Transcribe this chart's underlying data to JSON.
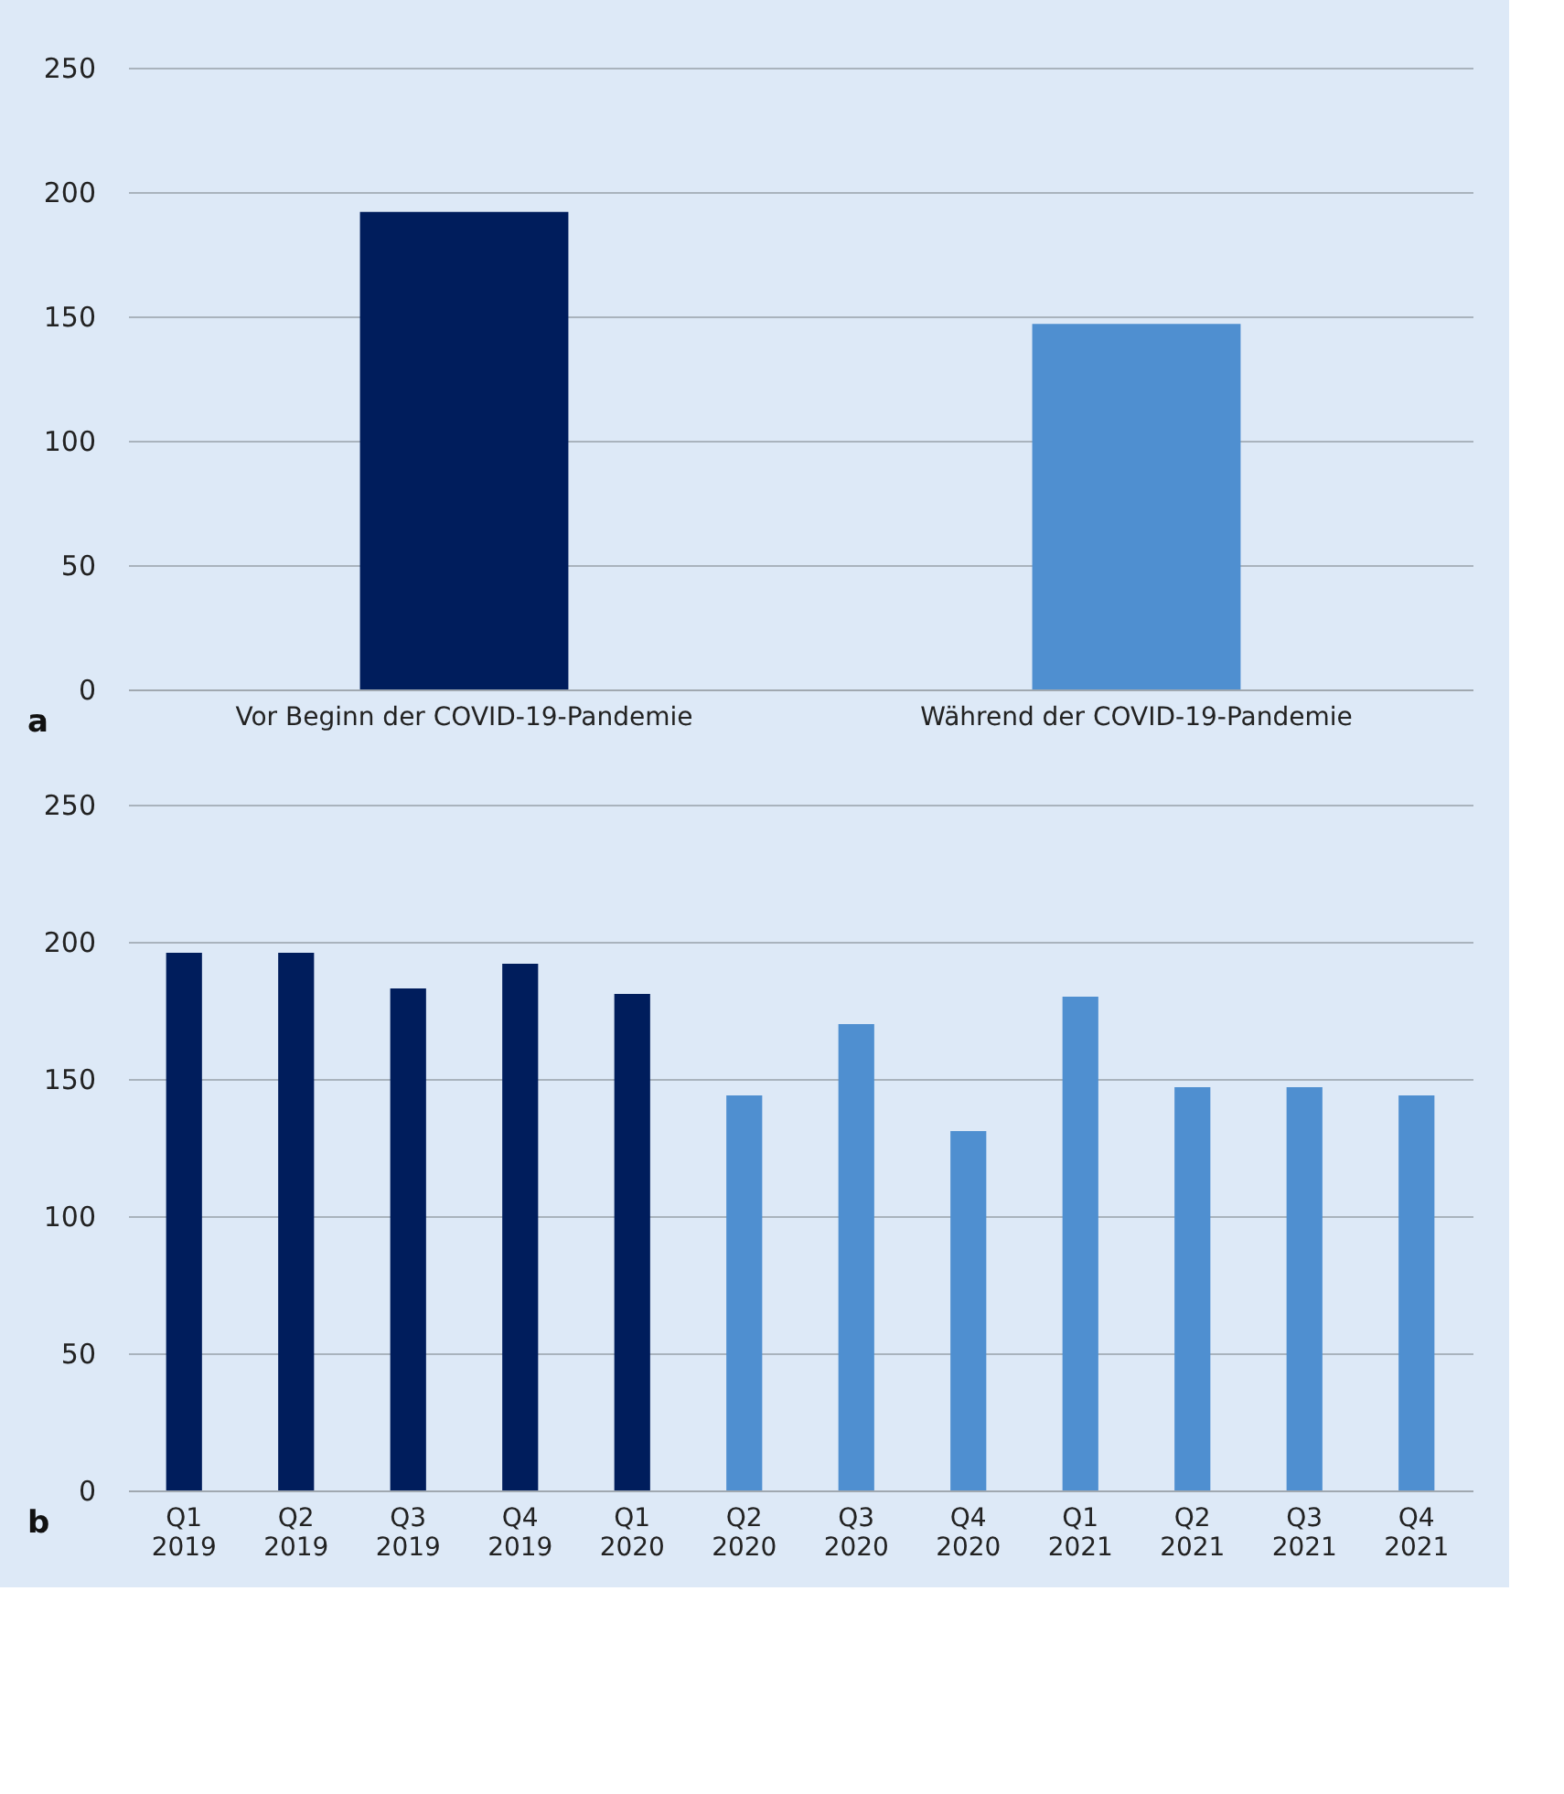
{
  "chart_data": [
    {
      "type": "bar",
      "categories": [
        "Vor Beginn der COVID-19-Pandemie",
        "Während der COVID-19-Pandemie"
      ],
      "values": [
        192,
        147
      ],
      "colors": [
        "#001d5c",
        "#4f8fd0"
      ],
      "ylim": [
        0,
        250
      ],
      "yticks": [
        0,
        50,
        100,
        150,
        200,
        250
      ],
      "grid": "y",
      "annotations": [
        "a"
      ]
    },
    {
      "type": "bar",
      "categories": [
        "Q1\n2019",
        "Q2\n2019",
        "Q3\n2019",
        "Q4\n2019",
        "Q1\n2020",
        "Q2\n2020",
        "Q3\n2020",
        "Q4\n2020",
        "Q1\n2021",
        "Q2\n2021",
        "Q3\n2021",
        "Q4\n2021"
      ],
      "values": [
        196,
        196,
        183,
        192,
        181,
        144,
        170,
        131,
        180,
        147,
        147,
        144
      ],
      "colors": [
        "#001d5c",
        "#001d5c",
        "#001d5c",
        "#001d5c",
        "#001d5c",
        "#4f8fd0",
        "#4f8fd0",
        "#4f8fd0",
        "#4f8fd0",
        "#4f8fd0",
        "#4f8fd0",
        "#4f8fd0"
      ],
      "ylim": [
        0,
        250
      ],
      "yticks": [
        0,
        50,
        100,
        150,
        200,
        250
      ],
      "grid": "y",
      "annotations": [
        "b"
      ]
    }
  ]
}
